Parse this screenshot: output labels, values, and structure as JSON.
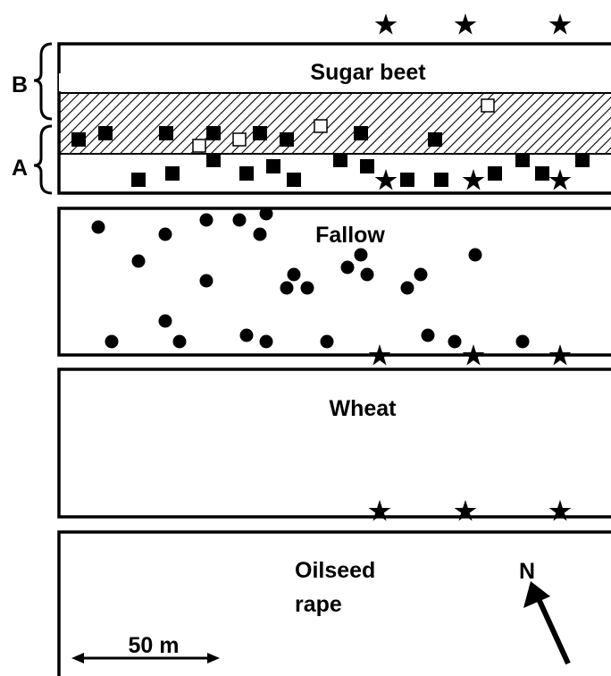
{
  "fields": [
    {
      "label": "Sugar beet"
    },
    {
      "label": "Fallow"
    },
    {
      "label": "Wheat"
    },
    {
      "label_lines": [
        "Oilseed",
        "rape"
      ]
    }
  ],
  "zones": [
    {
      "label": "B"
    },
    {
      "label": "A"
    }
  ],
  "compass": {
    "label": "N"
  },
  "scale_bar": {
    "label": "50 m"
  }
}
